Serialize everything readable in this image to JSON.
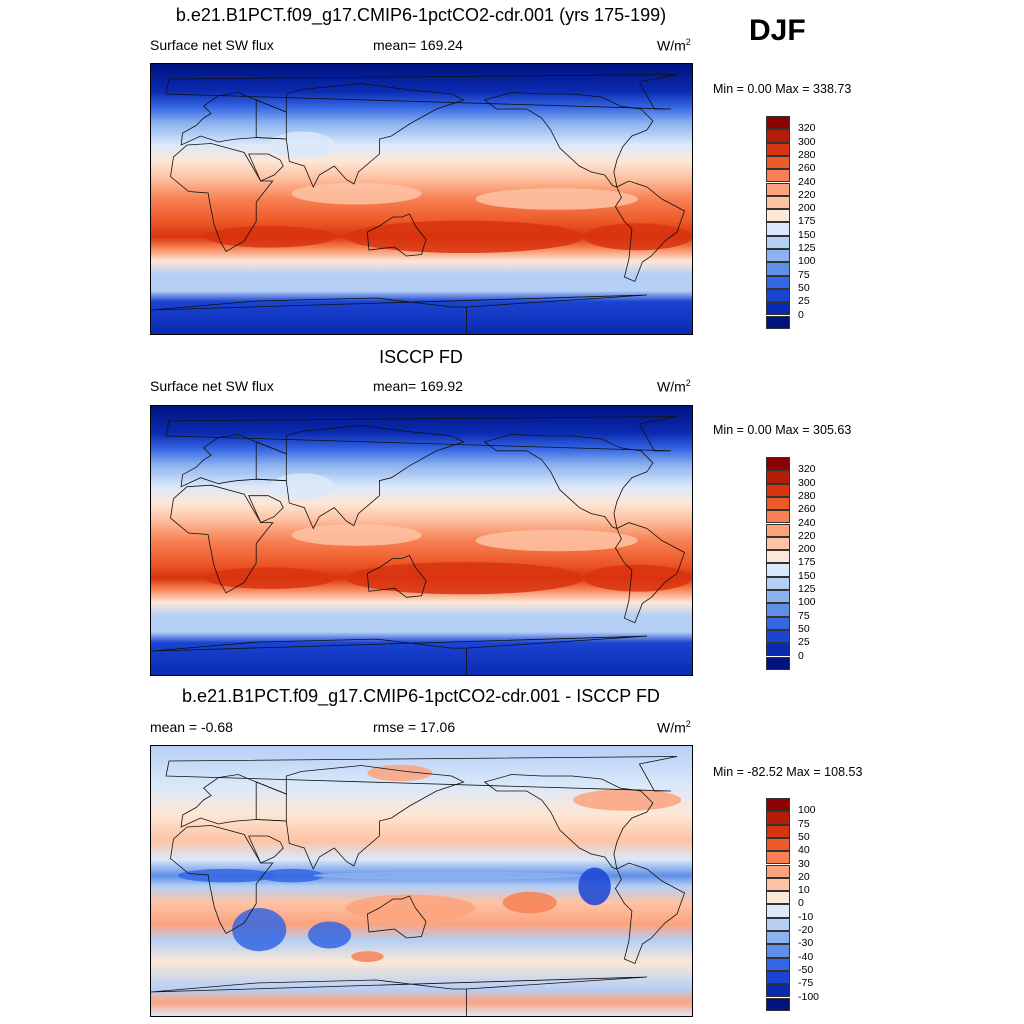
{
  "season": "DJF",
  "chart_data": [
    {
      "type": "heatmap",
      "title": "b.e21.B1PCT.f09_g17.CMIP6-1pctCO2-cdr.001 (yrs 175-199)",
      "left_label": "Surface net SW flux",
      "mean_label": "mean= 169.24",
      "units": "W/m",
      "units_sup": "2",
      "minmax": "Min =   0.00 Max = 338.73",
      "min": 0.0,
      "max": 338.73,
      "mean": 169.24,
      "colorbar": {
        "labels": [
          "320",
          "300",
          "280",
          "260",
          "240",
          "220",
          "200",
          "175",
          "150",
          "125",
          "100",
          "75",
          "50",
          "25",
          "0"
        ],
        "colors": [
          "#8b0000",
          "#b41e08",
          "#d8340f",
          "#ee5a2a",
          "#f78154",
          "#fca37e",
          "#fdc3a4",
          "#fde7d6",
          "#dbe9fa",
          "#b5cff6",
          "#8cb3ef",
          "#5f8fe6",
          "#3566e3",
          "#1a44d2",
          "#0a2ab1",
          "#00137f"
        ]
      }
    },
    {
      "type": "heatmap",
      "title": "ISCCP FD",
      "left_label": "Surface net SW flux",
      "mean_label": "mean= 169.92",
      "units": "W/m",
      "units_sup": "2",
      "minmax": "Min =   0.00 Max = 305.63",
      "min": 0.0,
      "max": 305.63,
      "mean": 169.92,
      "colorbar": {
        "labels": [
          "320",
          "300",
          "280",
          "260",
          "240",
          "220",
          "200",
          "175",
          "150",
          "125",
          "100",
          "75",
          "50",
          "25",
          "0"
        ],
        "colors": [
          "#8b0000",
          "#b41e08",
          "#d8340f",
          "#ee5a2a",
          "#f78154",
          "#fca37e",
          "#fdc3a4",
          "#fde7d6",
          "#dbe9fa",
          "#b5cff6",
          "#8cb3ef",
          "#5f8fe6",
          "#3566e3",
          "#1a44d2",
          "#0a2ab1",
          "#00137f"
        ]
      }
    },
    {
      "type": "heatmap",
      "title": "b.e21.B1PCT.f09_g17.CMIP6-1pctCO2-cdr.001 - ISCCP FD",
      "left_label": "mean =  -0.68",
      "mean_label": "rmse =  17.06",
      "units": "W/m",
      "units_sup": "2",
      "minmax": "Min = -82.52 Max = 108.53",
      "min": -82.52,
      "max": 108.53,
      "mean": -0.68,
      "rmse": 17.06,
      "colorbar": {
        "labels": [
          "100",
          "75",
          "50",
          "40",
          "30",
          "20",
          "10",
          "0",
          "-10",
          "-20",
          "-30",
          "-40",
          "-50",
          "-75",
          "-100"
        ],
        "colors": [
          "#8b0000",
          "#b41e08",
          "#d8340f",
          "#ee5a2a",
          "#f78154",
          "#fca37e",
          "#fdc3a4",
          "#fde7d6",
          "#dbe9fa",
          "#b5cff6",
          "#8cb3ef",
          "#5f8fe6",
          "#3566e3",
          "#1a44d2",
          "#0a2ab1",
          "#00137f"
        ]
      }
    }
  ]
}
